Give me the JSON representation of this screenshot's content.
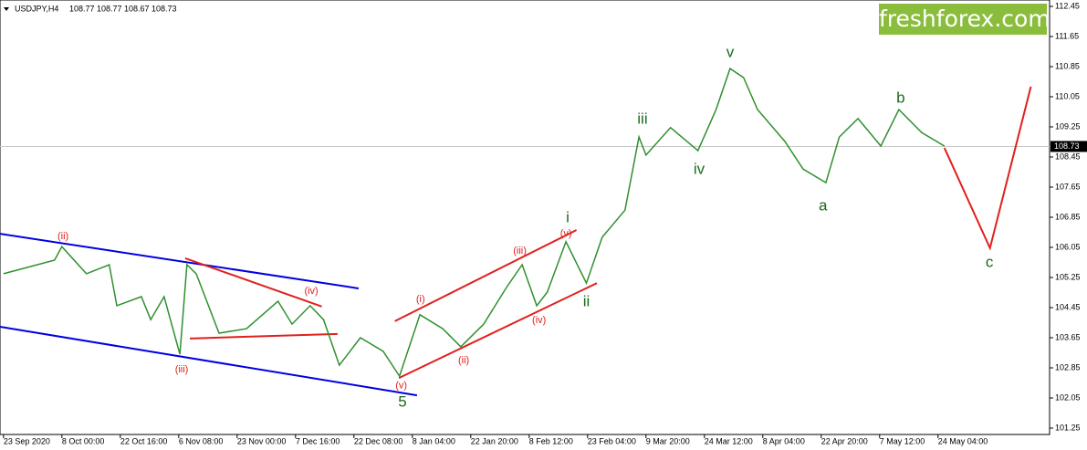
{
  "header": {
    "symbol": "USDJPY,H4",
    "ohlc": [
      108.77,
      108.77,
      108.67,
      108.73
    ]
  },
  "logo": "freshforex.com",
  "chart_data": {
    "type": "line",
    "xlim": [
      -0.06,
      17.91
    ],
    "ylim": [
      101.08,
      112.62
    ],
    "xticks": [
      {
        "value": 0,
        "label": "23 Sep 2020"
      },
      {
        "value": 1,
        "label": "8 Oct 00:00"
      },
      {
        "value": 2,
        "label": "22 Oct 16:00"
      },
      {
        "value": 3,
        "label": "6 Nov 08:00"
      },
      {
        "value": 4,
        "label": "23 Nov 00:00"
      },
      {
        "value": 5,
        "label": "7 Dec 16:00"
      },
      {
        "value": 6,
        "label": "22 Dec 08:00"
      },
      {
        "value": 7,
        "label": "8 Jan 04:00"
      },
      {
        "value": 8,
        "label": "22 Jan 20:00"
      },
      {
        "value": 9,
        "label": "8 Feb 12:00"
      },
      {
        "value": 10,
        "label": "23 Feb 04:00"
      },
      {
        "value": 11,
        "label": "9 Mar 20:00"
      },
      {
        "value": 12,
        "label": "24 Mar 12:00"
      },
      {
        "value": 13,
        "label": "8 Apr 04:00"
      },
      {
        "value": 14,
        "label": "22 Apr 20:00"
      },
      {
        "value": 15,
        "label": "7 May 12:00"
      },
      {
        "value": 16,
        "label": "24 May 04:00"
      }
    ],
    "yticks": [
      112.45,
      111.65,
      110.85,
      110.05,
      109.25,
      108.45,
      107.65,
      106.85,
      106.05,
      105.25,
      104.45,
      103.65,
      102.85,
      102.05,
      101.25
    ],
    "last_price": 108.73,
    "series": [
      {
        "color": "#2f8f2f",
        "x": [
          0,
          0.875,
          1,
          1.42,
          1.81,
          1.94,
          2.36,
          2.52,
          2.75,
          3.02,
          3.14,
          3.3,
          3.69,
          4.16,
          4.7,
          4.94,
          5.25,
          5.48,
          5.75,
          6.11,
          6.5,
          6.78,
          7.13,
          7.52,
          7.83,
          8.22,
          8.61,
          8.88,
          9.13,
          9.31,
          9.63,
          9.98,
          10.25,
          10.64,
          10.88,
          11.0,
          11.42,
          11.89,
          12.2,
          12.44,
          12.67,
          12.91,
          13.38,
          13.69,
          14.08,
          14.31,
          14.63,
          15.02,
          15.33,
          15.72,
          16.11
        ],
        "values": [
          105.35,
          105.71,
          106.07,
          105.35,
          105.59,
          104.5,
          104.74,
          104.13,
          104.74,
          103.21,
          105.59,
          105.35,
          103.77,
          103.89,
          104.62,
          104.01,
          104.5,
          104.13,
          102.92,
          103.65,
          103.29,
          102.63,
          104.26,
          103.89,
          103.41,
          104.01,
          104.98,
          105.59,
          104.5,
          104.86,
          106.2,
          105.1,
          106.32,
          107.04,
          108.98,
          108.5,
          109.23,
          108.62,
          109.71,
          110.8,
          110.56,
          109.71,
          108.86,
          108.13,
          107.77,
          108.98,
          109.47,
          108.74,
          109.71,
          109.1,
          108.74
        ]
      },
      {
        "color": "#e0201e",
        "x": [
          16.11,
          16.89,
          17.59
        ],
        "values": [
          108.69,
          106.03,
          110.32
        ]
      }
    ],
    "trendlines": [
      {
        "color": "#0000e0",
        "x": [
          -0.06,
          6.08
        ],
        "y": [
          106.41,
          104.96
        ]
      },
      {
        "color": "#0000e0",
        "x": [
          -0.06,
          7.08
        ],
        "y": [
          103.94,
          102.12
        ]
      },
      {
        "color": "#e0201e",
        "x": [
          3.11,
          5.45
        ],
        "y": [
          105.76,
          104.48
        ]
      },
      {
        "color": "#e0201e",
        "x": [
          3.19,
          5.72
        ],
        "y": [
          103.63,
          103.75
        ]
      },
      {
        "color": "#e0201e",
        "x": [
          6.7,
          9.81
        ],
        "y": [
          104.09,
          106.51
        ]
      },
      {
        "color": "#e0201e",
        "x": [
          6.77,
          10.16
        ],
        "y": [
          102.58,
          105.1
        ]
      }
    ],
    "annotations": [
      {
        "text": "(ii)",
        "x": 1.02,
        "y": 106.34,
        "color": "#e0201e"
      },
      {
        "text": "(iii)",
        "x": 3.05,
        "y": 102.8,
        "color": "#e0201e"
      },
      {
        "text": "(iv)",
        "x": 5.27,
        "y": 104.89,
        "color": "#e0201e"
      },
      {
        "text": "5",
        "x": 6.83,
        "y": 101.93,
        "color": "#1a6b1a"
      },
      {
        "text": "(v)",
        "x": 6.81,
        "y": 102.37,
        "color": "#e0201e"
      },
      {
        "text": "(i)",
        "x": 7.14,
        "y": 104.67,
        "color": "#e0201e"
      },
      {
        "text": "(ii)",
        "x": 7.88,
        "y": 103.04,
        "color": "#e0201e"
      },
      {
        "text": "(iii)",
        "x": 8.84,
        "y": 105.95,
        "color": "#e0201e"
      },
      {
        "text": "(iv)",
        "x": 9.17,
        "y": 104.11,
        "color": "#e0201e"
      },
      {
        "text": "i",
        "x": 9.66,
        "y": 106.83,
        "color": "#1a6b1a"
      },
      {
        "text": "(v)",
        "x": 9.63,
        "y": 106.41,
        "color": "#e0201e"
      },
      {
        "text": "ii",
        "x": 9.98,
        "y": 104.6,
        "color": "#1a6b1a"
      },
      {
        "text": "iii",
        "x": 10.94,
        "y": 109.44,
        "color": "#1a6b1a"
      },
      {
        "text": "iv",
        "x": 11.91,
        "y": 108.11,
        "color": "#1a6b1a"
      },
      {
        "text": "v",
        "x": 12.44,
        "y": 111.21,
        "color": "#1a6b1a"
      },
      {
        "text": "a",
        "x": 14.03,
        "y": 107.14,
        "color": "#1a6b1a"
      },
      {
        "text": "b",
        "x": 15.36,
        "y": 110.0,
        "color": "#1a6b1a"
      },
      {
        "text": "c",
        "x": 16.88,
        "y": 105.64,
        "color": "#1a6b1a"
      }
    ]
  }
}
